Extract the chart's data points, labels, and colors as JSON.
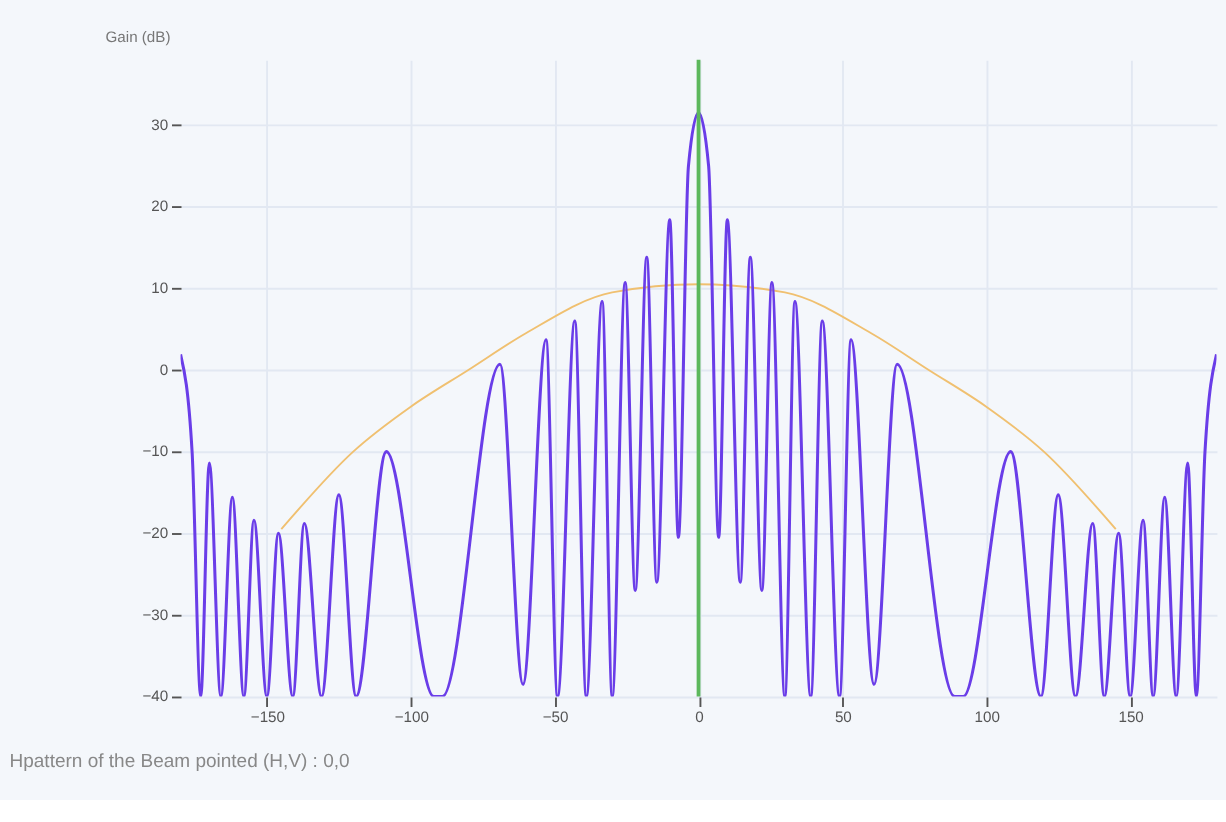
{
  "chart_data": {
    "type": "line",
    "ylabel": "Gain (dB)",
    "annotations": [
      "Hpattern of the Beam pointed (H,V) : 0,0"
    ],
    "xlim": [
      -180,
      180
    ],
    "xticks": [
      -150,
      -100,
      -50,
      0,
      50,
      100,
      150
    ],
    "ylim": [
      -40,
      38
    ],
    "yticks": [
      -40,
      -30,
      -20,
      -10,
      0,
      10,
      20,
      30
    ],
    "grid": true,
    "marker": "none",
    "line_style": "solid",
    "ref_lines": [
      {
        "axis": "x",
        "value": 0,
        "color": "#5cb85c"
      }
    ],
    "series": [
      {
        "color": "#f0c070",
        "x": [
          -145,
          -120,
          -100,
          -80,
          -60,
          -30,
          0,
          30,
          60,
          80,
          100,
          120,
          145
        ],
        "values": [
          -19.5,
          -10,
          -4.5,
          0,
          4.5,
          9.5,
          10.5,
          9.5,
          4.5,
          0,
          -4.5,
          -10,
          -19.5
        ]
      },
      {
        "color": "#6a3de8",
        "x": [
          -180,
          -176,
          -173,
          -170,
          -166,
          -162,
          -158,
          -154.5,
          -150,
          -146,
          -141,
          -137,
          -131,
          -125,
          -119,
          -108.5,
          -92,
          -89,
          -69,
          -61,
          -53,
          -49,
          -43,
          -39,
          -33.5,
          -30,
          -25.5,
          -22,
          -18,
          -14.5,
          -10,
          -7,
          -3.5,
          0,
          3.5,
          7,
          10,
          14.5,
          18,
          22,
          25.5,
          30,
          33.5,
          39,
          43,
          49,
          53,
          61,
          69,
          89,
          92,
          108.5,
          119,
          125,
          131,
          137,
          141,
          146,
          150,
          154.5,
          158,
          162,
          166,
          170,
          173,
          176,
          180
        ],
        "values": [
          1.9,
          -10,
          -40,
          -11.4,
          -40,
          -15.6,
          -40,
          -18.4,
          -40,
          -20,
          -40,
          -18.8,
          -40,
          -15.3,
          -40,
          -10,
          -40,
          -40,
          0.7,
          -38.5,
          3.7,
          -40,
          6,
          -40,
          8.4,
          -40,
          10.7,
          -27,
          13.8,
          -26,
          18.4,
          -20.5,
          25,
          31.5,
          25,
          -20.5,
          18.4,
          -26,
          13.8,
          -27,
          10.7,
          -40,
          8.4,
          -40,
          6,
          -40,
          3.7,
          -38.5,
          0.7,
          -40,
          -40,
          -10,
          -40,
          -15.3,
          -40,
          -18.8,
          -40,
          -20,
          -40,
          -18.4,
          -40,
          -15.6,
          -40,
          -11.4,
          -40,
          -10,
          1.9
        ]
      }
    ]
  }
}
